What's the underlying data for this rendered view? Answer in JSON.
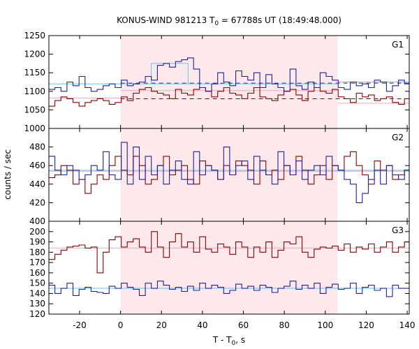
{
  "title": {
    "prefix": "KONUS-WIND 981213 T",
    "sub": "0",
    "suffix": " = 67788s UT (18:49:48.000)"
  },
  "xlabel": {
    "prefix": "T - T",
    "sub": "0",
    "suffix": ", s"
  },
  "ylabel": "counts / sec",
  "colors": {
    "red": "#8b0000",
    "blue": "#2020a0",
    "cyan": "#5fc8e8",
    "pink": "#f4a8c0",
    "shade": "#fde8ec"
  },
  "chart_data": {
    "type": "line",
    "subtype": "step",
    "x_range": [
      -35,
      141
    ],
    "x_ticks": [
      -20,
      0,
      20,
      40,
      60,
      80,
      100,
      120,
      140
    ],
    "x_tick_labels": [
      "-20",
      "0",
      "20",
      "40",
      "60",
      "80",
      "100",
      "120",
      "140"
    ],
    "shaded_interval": [
      0,
      106
    ],
    "bin_width": 2.944,
    "x_start": -35,
    "panels": [
      {
        "name": "G1",
        "ylim": [
          1000,
          1250
        ],
        "y_ticks": [
          1000,
          1050,
          1100,
          1150,
          1200,
          1250
        ],
        "y_tick_labels": [
          "1000",
          "1050",
          "1100",
          "1150",
          "1200",
          "1250"
        ],
        "series": [
          {
            "name": "red",
            "color": "#8b0000",
            "values": [
              1060,
              1075,
              1085,
              1080,
              1070,
              1060,
              1070,
              1075,
              1080,
              1075,
              1065,
              1070,
              1085,
              1075,
              1095,
              1105,
              1110,
              1100,
              1095,
              1090,
              1080,
              1105,
              1095,
              1090,
              1105,
              1110,
              1100,
              1085,
              1100,
              1110,
              1095,
              1090,
              1080,
              1095,
              1110,
              1085,
              1080,
              1075,
              1090,
              1100,
              1105,
              1090,
              1075,
              1100,
              1110,
              1100,
              1095,
              1105,
              1085,
              1080,
              1070,
              1095,
              1085,
              1090,
              1075,
              1080,
              1085,
              1070,
              1065,
              1080
            ]
          },
          {
            "name": "blue",
            "color": "#2020a0",
            "values": [
              1105,
              1110,
              1100,
              1125,
              1115,
              1140,
              1110,
              1100,
              1105,
              1115,
              1120,
              1110,
              1130,
              1115,
              1120,
              1125,
              1140,
              1130,
              1170,
              1175,
              1165,
              1180,
              1185,
              1190,
              1160,
              1110,
              1100,
              1120,
              1150,
              1125,
              1115,
              1155,
              1140,
              1130,
              1150,
              1110,
              1145,
              1120,
              1110,
              1100,
              1160,
              1115,
              1105,
              1125,
              1110,
              1150,
              1140,
              1130,
              1110,
              1105,
              1125,
              1115,
              1120,
              1110,
              1130,
              1125,
              1100,
              1115,
              1130,
              1120
            ]
          },
          {
            "name": "cyan-box",
            "color": "#5fc8e8",
            "values": []
          }
        ],
        "levels": [
          {
            "type": "dashed",
            "color": "#2020a0",
            "y": 1122,
            "x_from": 0,
            "x_to": 141
          },
          {
            "type": "dashed",
            "color": "#8b0000",
            "y": 1080,
            "x_from": 0,
            "x_to": 141
          },
          {
            "type": "solid",
            "color": "#5fc8e8",
            "y": 1120,
            "x_from": -35,
            "x_to": 106
          },
          {
            "type": "solid",
            "color": "#5fc8e8",
            "y": 1125,
            "x_from": 106,
            "x_to": 141
          },
          {
            "type": "solid",
            "color": "#f4a8c0",
            "y": 1082,
            "x_from": -35,
            "x_to": 0
          },
          {
            "type": "solid",
            "color": "#f4a8c0",
            "y": 1102,
            "x_from": 0,
            "x_to": 106
          },
          {
            "type": "solid",
            "color": "#f4a8c0",
            "y": 1068,
            "x_from": 106,
            "x_to": 141
          }
        ],
        "highlight_box": {
          "x_from": 15,
          "x_to": 33,
          "y": 1175
        }
      },
      {
        "name": "G2",
        "ylim": [
          400,
          500
        ],
        "y_ticks": [
          400,
          420,
          440,
          460,
          480
        ],
        "y_tick_labels": [
          "400",
          "420",
          "440",
          "460",
          "480"
        ],
        "series": [
          {
            "name": "red",
            "color": "#8b0000",
            "values": [
              447,
              450,
              460,
              455,
              440,
              445,
              430,
              440,
              450,
              445,
              460,
              470,
              455,
              450,
              470,
              460,
              440,
              445,
              460,
              470,
              450,
              455,
              460,
              445,
              440,
              465,
              460,
              455,
              445,
              460,
              450,
              465,
              460,
              455,
              440,
              465,
              450,
              455,
              445,
              460,
              450,
              470,
              455,
              440,
              450,
              460,
              445,
              460,
              455,
              470,
              475,
              460,
              450,
              440,
              465,
              455,
              460,
              445,
              450,
              455
            ]
          },
          {
            "name": "blue",
            "color": "#2020a0",
            "values": [
              470,
              455,
              450,
              460,
              455,
              445,
              450,
              460,
              455,
              475,
              450,
              445,
              485,
              440,
              480,
              445,
              470,
              450,
              460,
              440,
              455,
              465,
              445,
              440,
              475,
              450,
              460,
              455,
              445,
              480,
              450,
              460,
              465,
              445,
              470,
              455,
              450,
              440,
              475,
              460,
              450,
              465,
              445,
              455,
              460,
              450,
              470,
              460,
              455,
              445,
              440,
              420,
              430,
              445,
              455,
              440,
              460,
              450,
              445,
              455
            ]
          }
        ],
        "levels": [
          {
            "type": "solid",
            "color": "#5fc8e8",
            "y": 454,
            "x_from": -35,
            "x_to": 141
          },
          {
            "type": "solid",
            "color": "#f4a8c0",
            "y": 455,
            "x_from": -35,
            "x_to": 141
          }
        ]
      },
      {
        "name": "G3",
        "ylim": [
          120,
          210
        ],
        "y_ticks": [
          120,
          130,
          140,
          150,
          160,
          170,
          180,
          190,
          200
        ],
        "y_tick_labels": [
          "120",
          "130",
          "140",
          "150",
          "160",
          "170",
          "180",
          "190",
          "200"
        ],
        "series": [
          {
            "name": "red",
            "color": "#8b0000",
            "values": [
              173,
              178,
              182,
              185,
              186,
              187,
              184,
              185,
              160,
              180,
              192,
              195,
              185,
              190,
              193,
              185,
              180,
              200,
              185,
              175,
              190,
              198,
              185,
              190,
              180,
              195,
              183,
              180,
              188,
              185,
              178,
              190,
              185,
              175,
              185,
              180,
              190,
              175,
              182,
              190,
              188,
              195,
              180,
              175,
              183,
              185,
              184,
              186,
              182,
              188,
              180,
              185,
              183,
              188,
              180,
              185,
              190,
              180,
              185,
              190
            ]
          },
          {
            "name": "blue",
            "color": "#2020a0",
            "values": [
              148,
              140,
              145,
              150,
              138,
              144,
              146,
              142,
              141,
              140,
              147,
              145,
              150,
              146,
              144,
              138,
              150,
              145,
              152,
              148,
              144,
              146,
              142,
              147,
              143,
              150,
              145,
              148,
              146,
              140,
              143,
              149,
              145,
              147,
              143,
              148,
              146,
              141,
              145,
              147,
              152,
              144,
              148,
              145,
              150,
              140,
              146,
              149,
              144,
              145,
              150,
              140,
              146,
              148,
              143,
              145,
              137,
              148,
              145,
              145
            ]
          }
        ],
        "levels": [
          {
            "type": "solid",
            "color": "#f4a8c0",
            "y": 184,
            "x_from": -35,
            "x_to": 141
          },
          {
            "type": "solid",
            "color": "#5fc8e8",
            "y": 145,
            "x_from": -35,
            "x_to": 141
          }
        ]
      }
    ]
  }
}
